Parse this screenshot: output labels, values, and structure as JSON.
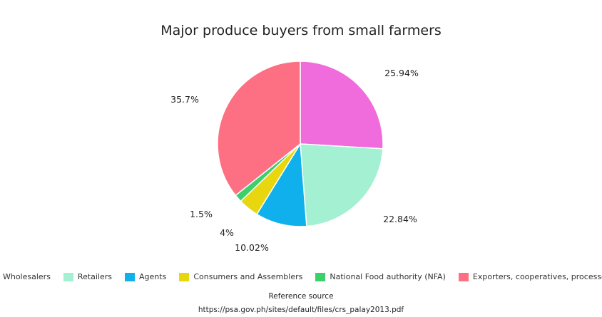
{
  "chart_data": {
    "type": "pie",
    "title": "Major produce buyers from small farmers",
    "slices": [
      {
        "name": "Wholesalers",
        "value": 25.94,
        "label": "25.94%",
        "color": "#f06bdc"
      },
      {
        "name": "Retailers",
        "value": 22.84,
        "label": "22.84%",
        "color": "#a3f0d3"
      },
      {
        "name": "Agents",
        "value": 10.02,
        "label": "10.02%",
        "color": "#0fb0ec"
      },
      {
        "name": "Consumers and Assemblers",
        "value": 4,
        "label": "4%",
        "color": "#e8d60f"
      },
      {
        "name": "National Food authority (NFA)",
        "value": 1.5,
        "label": "1.5%",
        "color": "#3dcf6a"
      },
      {
        "name": "Exporters, cooperatives, processors",
        "value": 35.7,
        "label": "35.7%",
        "color": "#fd6f83"
      }
    ],
    "legend_position": "bottom"
  },
  "source": {
    "caption": "Reference source",
    "url": "https://psa.gov.ph/sites/default/files/crs_palay2013.pdf"
  }
}
